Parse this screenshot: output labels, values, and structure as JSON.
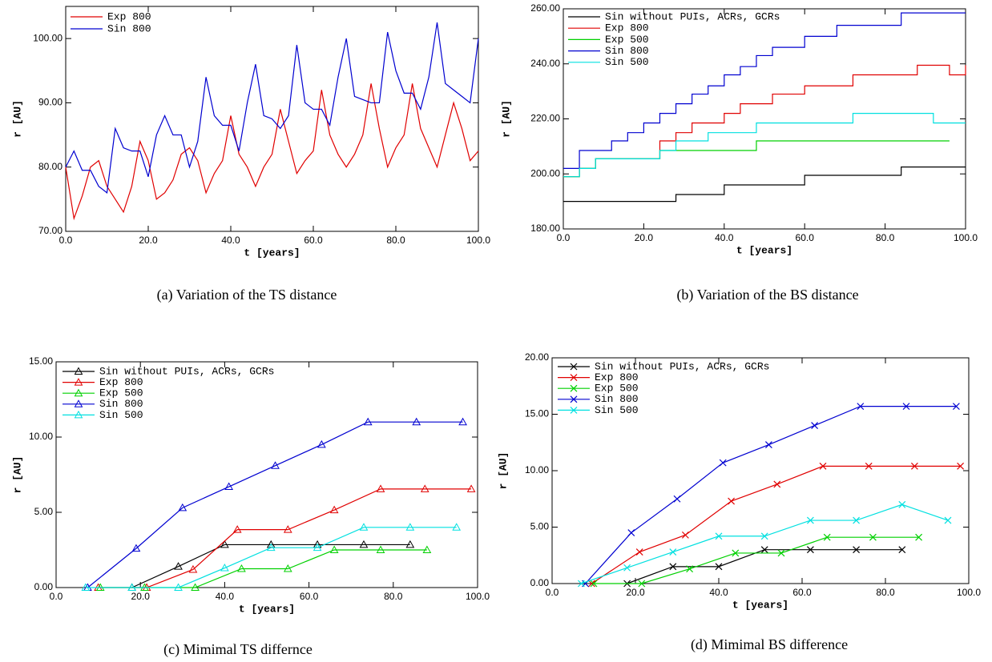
{
  "chart_data": [
    {
      "type": "line",
      "caption": "(a) Variation of the TS distance",
      "xlabel": "t [years]",
      "ylabel": "r [AU]",
      "xlim": [
        0,
        100
      ],
      "ylim": [
        70,
        105
      ],
      "xticks": [
        {
          "value": 0,
          "label": "0.0"
        },
        {
          "value": 20,
          "label": "20.0"
        },
        {
          "value": 40,
          "label": "40.0"
        },
        {
          "value": 60,
          "label": "60.0"
        },
        {
          "value": 80,
          "label": "80.0"
        },
        {
          "value": 100,
          "label": "100.0"
        }
      ],
      "yticks": [
        {
          "value": 70,
          "label": "70.00"
        },
        {
          "value": 80,
          "label": "80.00"
        },
        {
          "value": 90,
          "label": "90.00"
        },
        {
          "value": 100,
          "label": "100.00"
        }
      ],
      "legend": "upper left",
      "x": [
        0,
        2,
        4,
        6,
        8,
        10,
        12,
        14,
        16,
        18,
        20,
        22,
        24,
        26,
        28,
        30,
        32,
        34,
        36,
        38,
        40,
        42,
        44,
        46,
        48,
        50,
        52,
        54,
        56,
        58,
        60,
        62,
        64,
        66,
        68,
        70,
        72,
        74,
        76,
        78,
        80,
        82,
        84,
        86,
        88,
        90,
        92,
        94,
        96,
        98,
        100
      ],
      "series": [
        {
          "name": "Exp 800",
          "color": "#e00000",
          "values": [
            80,
            72,
            75.5,
            80,
            81,
            77,
            75,
            73,
            77,
            84,
            81,
            75,
            76,
            78,
            82,
            83,
            81,
            76,
            79,
            81,
            88,
            82,
            80,
            77,
            80,
            82,
            89,
            84,
            79,
            81,
            82.5,
            92,
            85,
            82,
            80,
            82,
            85,
            93,
            86,
            80,
            83,
            85,
            93,
            86,
            83,
            80,
            85,
            90,
            86,
            81,
            82.5
          ]
        },
        {
          "name": "Sin 800",
          "color": "#0000d0",
          "values": [
            80,
            82.5,
            79.5,
            79.5,
            77,
            76,
            86,
            83,
            82.5,
            82.5,
            78.5,
            85,
            88,
            85,
            85,
            80,
            84,
            94,
            88,
            86.5,
            86.5,
            82.5,
            90,
            96,
            88,
            87.5,
            86,
            88,
            99,
            90,
            89,
            89,
            86.5,
            94,
            100,
            91,
            90.5,
            90,
            90,
            101,
            95,
            91.5,
            91.5,
            89,
            94,
            102.5,
            93,
            92,
            91,
            90,
            100
          ]
        }
      ]
    },
    {
      "type": "line",
      "caption": "(b) Variation of the BS distance",
      "xlabel": "t [years]",
      "ylabel": "r [AU]",
      "step": true,
      "xlim": [
        0,
        100
      ],
      "ylim": [
        180,
        260
      ],
      "xticks": [
        {
          "value": 0,
          "label": "0.0"
        },
        {
          "value": 20,
          "label": "20.0"
        },
        {
          "value": 40,
          "label": "40.0"
        },
        {
          "value": 60,
          "label": "60.0"
        },
        {
          "value": 80,
          "label": "80.0"
        },
        {
          "value": 100,
          "label": "100.0"
        }
      ],
      "yticks": [
        {
          "value": 180,
          "label": "180.00"
        },
        {
          "value": 200,
          "label": "200.00"
        },
        {
          "value": 220,
          "label": "220.00"
        },
        {
          "value": 240,
          "label": "240.00"
        },
        {
          "value": 260,
          "label": "260.00"
        }
      ],
      "legend": "upper left",
      "x": [
        0,
        4,
        8,
        12,
        16,
        20,
        24,
        28,
        32,
        36,
        40,
        44,
        48,
        52,
        56,
        60,
        64,
        68,
        72,
        76,
        80,
        84,
        88,
        92,
        96,
        100
      ],
      "series": [
        {
          "name": "Sin without PUIs, ACRs, GCRs",
          "color": "#000000",
          "values": [
            190,
            190,
            190,
            190,
            190,
            190,
            190,
            192.5,
            192.5,
            192.5,
            196,
            196,
            196,
            196,
            196,
            199.5,
            199.5,
            199.5,
            199.5,
            199.5,
            199.5,
            202.5,
            202.5,
            202.5,
            202.5,
            202.5
          ]
        },
        {
          "name": "Exp 800",
          "color": "#e00000",
          "values": [
            199,
            202,
            205.5,
            205.5,
            205.5,
            205.5,
            212,
            215,
            218.5,
            218.5,
            222,
            225.5,
            225.5,
            229,
            229,
            232,
            232,
            232,
            236,
            236,
            236,
            236,
            239.5,
            239.5,
            236,
            239.5
          ]
        },
        {
          "name": "Exp 500",
          "color": "#00d000",
          "values": [
            199,
            202,
            205.5,
            205.5,
            205.5,
            205.5,
            208.5,
            208.5,
            208.5,
            208.5,
            208.5,
            208.5,
            212,
            212,
            212,
            212,
            212,
            212,
            212,
            212,
            212,
            212,
            212,
            212,
            212,
            null
          ]
        },
        {
          "name": "Sin 800",
          "color": "#0000d0",
          "values": [
            202,
            208.5,
            208.5,
            212,
            215,
            218.5,
            222,
            225.5,
            229,
            232,
            236,
            239,
            243,
            246,
            246,
            250,
            250,
            254,
            254,
            254,
            254,
            258.5,
            258.5,
            258.5,
            258.5,
            258.5
          ]
        },
        {
          "name": "Sin 500",
          "color": "#00e0e0",
          "values": [
            199,
            202,
            205.5,
            205.5,
            205.5,
            205.5,
            208.5,
            212,
            212,
            215,
            215,
            215,
            218.5,
            218.5,
            218.5,
            218.5,
            218.5,
            218.5,
            222,
            222,
            222,
            222,
            222,
            218.5,
            218.5,
            218.5
          ]
        }
      ]
    },
    {
      "type": "line",
      "caption": "(c) Mimimal TS differnce",
      "xlabel": "t [years]",
      "ylabel": "r [AU]",
      "marker": "triangle",
      "xlim": [
        0,
        100
      ],
      "ylim": [
        0,
        15
      ],
      "xticks": [
        {
          "value": 0,
          "label": "0.0"
        },
        {
          "value": 20,
          "label": "20.0"
        },
        {
          "value": 40,
          "label": "40.0"
        },
        {
          "value": 60,
          "label": "60.0"
        },
        {
          "value": 80,
          "label": "80.0"
        },
        {
          "value": 100,
          "label": "100.0"
        }
      ],
      "yticks": [
        {
          "value": 0,
          "label": "0.00"
        },
        {
          "value": 5,
          "label": "5.00"
        },
        {
          "value": 10,
          "label": "10.00"
        },
        {
          "value": 15,
          "label": "15.00"
        }
      ],
      "legend": "upper left",
      "series": [
        {
          "name": "Sin without PUIs, ACRs, GCRs",
          "color": "#000000",
          "x": [
            18,
            29,
            40,
            51,
            62,
            73,
            84
          ],
          "values": [
            0,
            1.4,
            2.85,
            2.85,
            2.85,
            2.85,
            2.85
          ]
        },
        {
          "name": "Exp 800",
          "color": "#e00000",
          "x": [
            10,
            21.5,
            32.5,
            43,
            55,
            66,
            77,
            87.5,
            98.5
          ],
          "values": [
            0,
            0,
            1.2,
            3.85,
            3.85,
            5.15,
            6.55,
            6.55,
            6.55
          ]
        },
        {
          "name": "Exp 500",
          "color": "#00d000",
          "x": [
            10.5,
            21,
            33,
            44,
            55,
            66,
            77,
            88
          ],
          "values": [
            0,
            0,
            0,
            1.25,
            1.25,
            2.5,
            2.5,
            2.5
          ]
        },
        {
          "name": "Sin 800",
          "color": "#0000d0",
          "x": [
            7.5,
            19,
            30,
            41,
            52,
            63,
            74,
            85.5,
            96.5
          ],
          "values": [
            0,
            2.6,
            5.3,
            6.7,
            8.1,
            9.5,
            11,
            11,
            11
          ]
        },
        {
          "name": "Sin 500",
          "color": "#00e0e0",
          "x": [
            7,
            18,
            29,
            40,
            51,
            62,
            73,
            84,
            95
          ],
          "values": [
            0,
            0,
            0,
            1.3,
            2.65,
            2.65,
            4,
            4,
            4
          ]
        }
      ]
    },
    {
      "type": "line",
      "caption": "(d) Mimimal BS difference",
      "xlabel": "t [years]",
      "ylabel": "r [AU]",
      "marker": "x",
      "xlim": [
        0,
        100
      ],
      "ylim": [
        0,
        20
      ],
      "xticks": [
        {
          "value": 0,
          "label": "0.0"
        },
        {
          "value": 20,
          "label": "20.0"
        },
        {
          "value": 40,
          "label": "40.0"
        },
        {
          "value": 60,
          "label": "60.0"
        },
        {
          "value": 80,
          "label": "80.0"
        },
        {
          "value": 100,
          "label": "100.0"
        }
      ],
      "yticks": [
        {
          "value": 0,
          "label": "0.00"
        },
        {
          "value": 5,
          "label": "5.00"
        },
        {
          "value": 10,
          "label": "10.00"
        },
        {
          "value": 15,
          "label": "15.00"
        },
        {
          "value": 20,
          "label": "20.00"
        }
      ],
      "legend": "upper left",
      "series": [
        {
          "name": "Sin without PUIs, ACRs, GCRs",
          "color": "#000000",
          "x": [
            18,
            29,
            40,
            51,
            62,
            73,
            84
          ],
          "values": [
            0,
            1.5,
            1.5,
            3,
            3,
            3,
            3
          ]
        },
        {
          "name": "Exp 800",
          "color": "#e00000",
          "x": [
            9.5,
            21,
            32,
            43,
            54,
            65,
            76,
            87,
            98
          ],
          "values": [
            0,
            2.8,
            4.3,
            7.3,
            8.8,
            10.4,
            10.4,
            10.4,
            10.4
          ]
        },
        {
          "name": "Exp 500",
          "color": "#00d000",
          "x": [
            10,
            21.5,
            33,
            44,
            55,
            66,
            77,
            88
          ],
          "values": [
            0,
            0,
            1.3,
            2.7,
            2.7,
            4.1,
            4.1,
            4.1
          ]
        },
        {
          "name": "Sin 800",
          "color": "#0000d0",
          "x": [
            8,
            19,
            30,
            41,
            52,
            63,
            74,
            85,
            97
          ],
          "values": [
            0,
            4.5,
            7.5,
            10.7,
            12.3,
            14,
            15.7,
            15.7,
            15.7
          ]
        },
        {
          "name": "Sin 500",
          "color": "#00e0e0",
          "x": [
            7,
            18,
            29,
            40,
            51,
            62,
            73,
            84,
            95
          ],
          "values": [
            0,
            1.4,
            2.8,
            4.2,
            4.2,
            5.6,
            5.6,
            7,
            5.6
          ]
        }
      ]
    }
  ]
}
